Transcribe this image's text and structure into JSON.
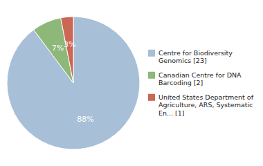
{
  "chart_data": {
    "type": "pie",
    "categories": [
      "Centre for Biodiversity\nGenomics [23]",
      "Canadian Centre for DNA\nBarcoding [2]",
      "United States Department of\nAgriculture, ARS, Systematic\nEn... [1]"
    ],
    "values": [
      88,
      7,
      3
    ],
    "value_labels": [
      "88%",
      "7%",
      "3%"
    ],
    "colors": [
      "#a8bfd8",
      "#8db87a",
      "#cc6655"
    ],
    "data_labels": true,
    "legend": "right"
  }
}
